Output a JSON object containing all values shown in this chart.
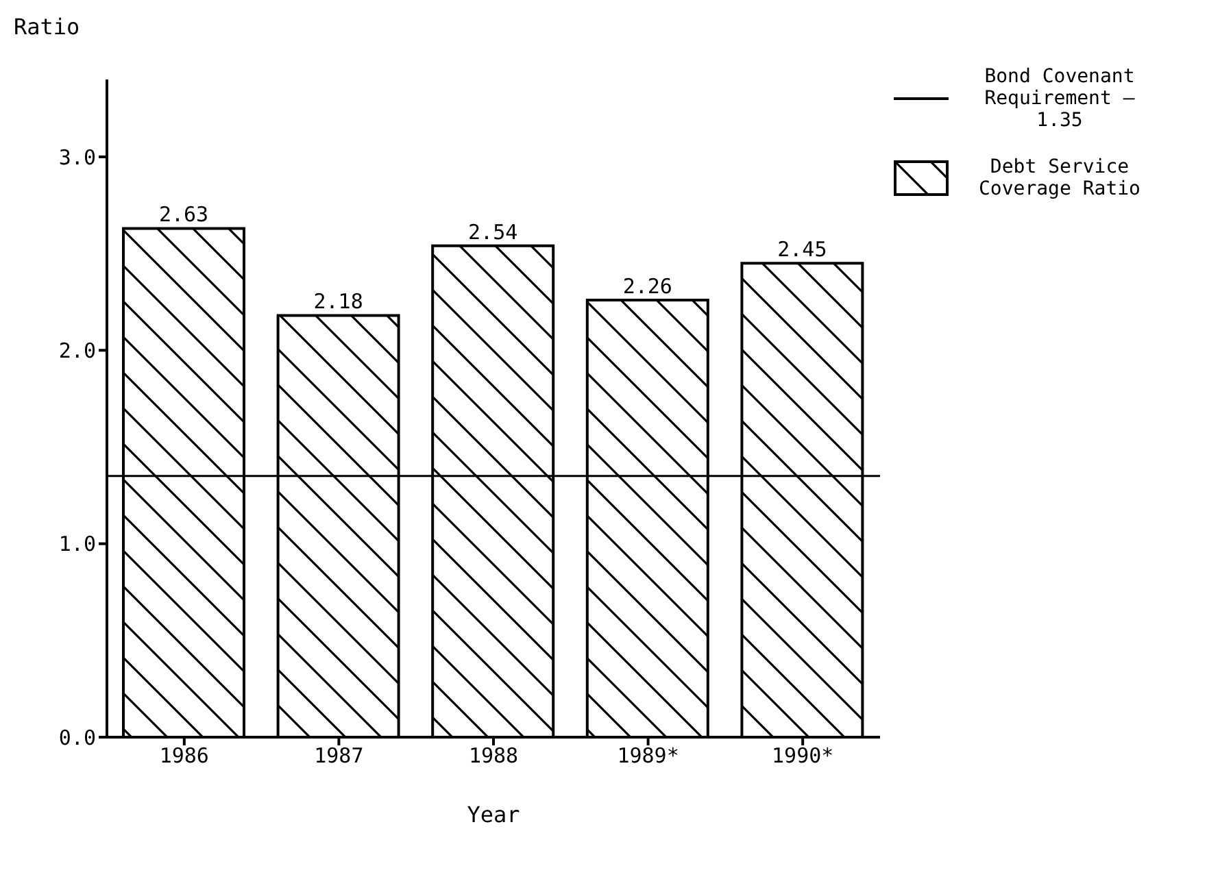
{
  "chart_data": {
    "type": "bar",
    "xlabel": "Year",
    "ylabel": "Ratio",
    "categories": [
      "1986",
      "1987",
      "1988",
      "1989*",
      "1990*"
    ],
    "series": [
      {
        "name": "Debt Service Coverage Ratio",
        "color": "#000000",
        "values": [
          2.63,
          2.18,
          2.54,
          2.26,
          2.45
        ]
      }
    ],
    "ylim": [
      0,
      3.4
    ],
    "yticks": [
      {
        "value": 0,
        "label": "0.0"
      },
      {
        "value": 1,
        "label": "1.0"
      },
      {
        "value": 2,
        "label": "2.0"
      },
      {
        "value": 3,
        "label": "3.0"
      }
    ],
    "ref_lines": [
      {
        "axis": "y",
        "value": 1.35,
        "label": "Bond Covenant Requirement — 1.35",
        "color": "#000000"
      }
    ],
    "data_labels": true,
    "grid": false,
    "legend": "top right"
  }
}
